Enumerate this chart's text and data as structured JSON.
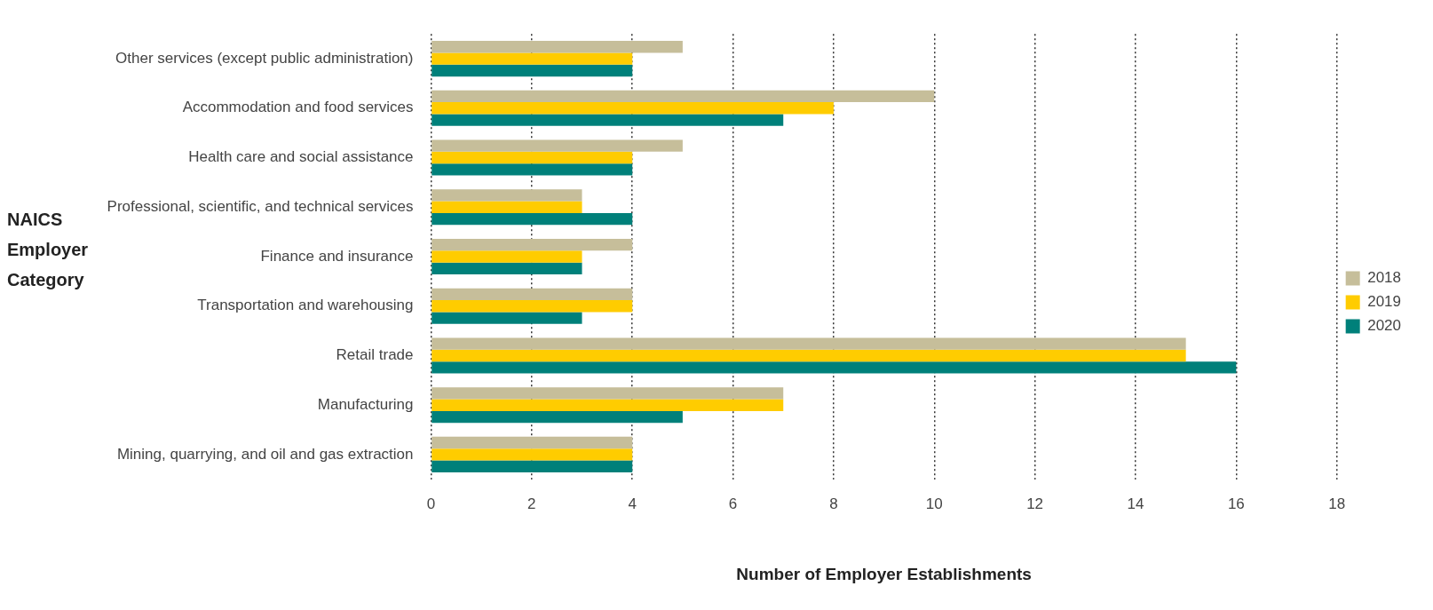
{
  "chart_data": {
    "type": "bar",
    "orientation": "horizontal",
    "xlabel": "Number of Employer Establishments",
    "ylabel": "NAICS Employer Category",
    "categories": [
      "Other services (except public administration)",
      "Accommodation and food services",
      "Health care and social assistance",
      "Professional, scientific, and technical services",
      "Finance and insurance",
      "Transportation and warehousing",
      "Retail trade",
      "Manufacturing",
      "Mining, quarrying, and oil and gas extraction"
    ],
    "series": [
      {
        "name": "2018",
        "color": "#c6be9a",
        "values": [
          5,
          10,
          5,
          3,
          4,
          4,
          15,
          7,
          4
        ]
      },
      {
        "name": "2019",
        "color": "#ffcc00",
        "values": [
          4,
          8,
          4,
          3,
          3,
          4,
          15,
          7,
          4
        ]
      },
      {
        "name": "2020",
        "color": "#00807a",
        "values": [
          4,
          7,
          4,
          4,
          3,
          3,
          16,
          5,
          4
        ]
      }
    ],
    "xlim": [
      0,
      18
    ],
    "xticks": [
      0,
      2,
      4,
      6,
      8,
      10,
      12,
      14,
      16,
      18
    ],
    "grid": "x",
    "legend": "right"
  }
}
